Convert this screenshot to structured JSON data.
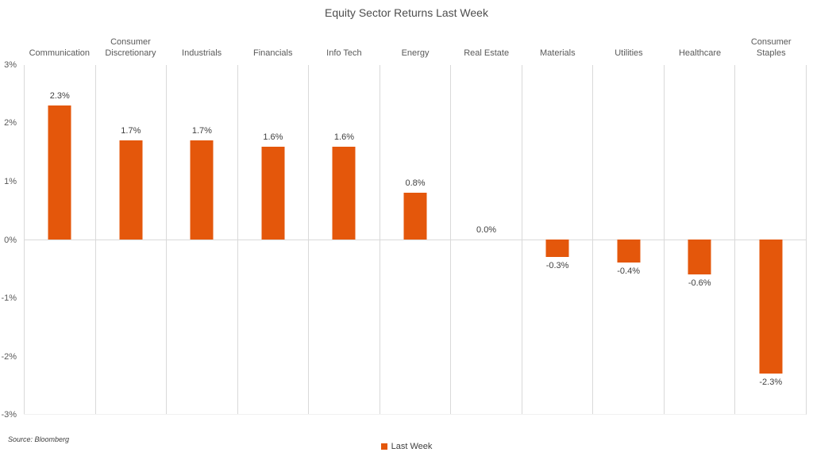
{
  "title": "Equity Sector Returns Last Week",
  "source_note": "Source: Bloomberg",
  "legend": {
    "label": "Last Week"
  },
  "colors": {
    "bar": "#E4570B",
    "grid": "#D9D9D9",
    "axis_text": "#595959",
    "label_text": "#404040",
    "title_text": "#4D4D4D"
  },
  "chart_data": {
    "type": "bar",
    "title": "Equity Sector Returns Last Week",
    "categories": [
      "Communication",
      "Consumer Discretionary",
      "Industrials",
      "Financials",
      "Info Tech",
      "Energy",
      "Real Estate",
      "Materials",
      "Utilities",
      "Healthcare",
      "Consumer Staples"
    ],
    "series": [
      {
        "name": "Last Week",
        "values": [
          2.3,
          1.7,
          1.7,
          1.6,
          1.6,
          0.8,
          0.0,
          -0.3,
          -0.4,
          -0.6,
          -2.3
        ]
      }
    ],
    "value_labels": [
      "2.3%",
      "1.7%",
      "1.7%",
      "1.6%",
      "1.6%",
      "0.8%",
      "0.0%",
      "-0.3%",
      "-0.4%",
      "-0.6%",
      "-2.3%"
    ],
    "xlabel": "",
    "ylabel": "",
    "ylim": [
      -3,
      3
    ],
    "ytick_values": [
      3,
      2,
      1,
      0,
      -1,
      -2,
      -3
    ],
    "ytick_labels": [
      "3%",
      "2%",
      "1%",
      "0%",
      "-1%",
      "-2%",
      "-3%"
    ],
    "grid": "vertical category separators + zero line, no horizontal gridlines",
    "legend_position": "bottom-center"
  }
}
